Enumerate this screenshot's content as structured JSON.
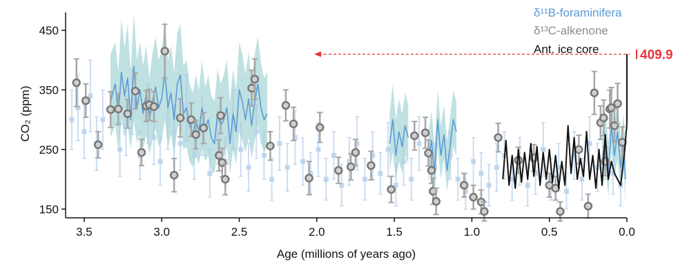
{
  "chart_data": {
    "type": "line",
    "xlabel": "Age (millions of years ago)",
    "ylabel": "CO₂ (ppm)",
    "xlim": [
      3.62,
      0.0
    ],
    "ylim": [
      140,
      480
    ],
    "x_ticks": [
      "3.5",
      "3.0",
      "2.5",
      "2.0",
      "1.5",
      "1.0",
      "0.5",
      "0.0"
    ],
    "x_tick_values": [
      3.5,
      3.0,
      2.5,
      2.0,
      1.5,
      1.0,
      0.5,
      0.0
    ],
    "y_ticks": [
      "150",
      "250",
      "350",
      "450"
    ],
    "y_tick_values": [
      150,
      250,
      350,
      450
    ],
    "grid": false,
    "legend_position": "top-right",
    "legend": [
      {
        "label": "δ¹¹B-foraminifera",
        "color": "#5b9bd5"
      },
      {
        "label": "δ¹³C-alkenone",
        "color": "#8c8c8c"
      },
      {
        "label": "Ant. ice core",
        "color": "#111111"
      }
    ],
    "annotation": {
      "label": "409.9",
      "value": 409.9,
      "color": "#e8333a"
    },
    "colors": {
      "boron": "#5b9bd5",
      "boron_band": "#7fc4c4",
      "alkenone": "#8c8c8c",
      "ice": "#111111",
      "accent": "#e8333a"
    },
    "series": [
      {
        "name": "δ¹¹B-foraminifera",
        "style": "line-with-band",
        "segments": [
          {
            "x": [
              3.33,
              3.3,
              3.28,
              3.26,
              3.24,
              3.22,
              3.2,
              3.18,
              3.16,
              3.14,
              3.12,
              3.1,
              3.08,
              3.06,
              3.04,
              3.02,
              3.0,
              2.98,
              2.96,
              2.94,
              2.92,
              2.9,
              2.88,
              2.86,
              2.84,
              2.82,
              2.8,
              2.78,
              2.76,
              2.74,
              2.72,
              2.7,
              2.68,
              2.66,
              2.64,
              2.62,
              2.6,
              2.58,
              2.56,
              2.54,
              2.52,
              2.5,
              2.48,
              2.46,
              2.44,
              2.42,
              2.4,
              2.38,
              2.36,
              2.34,
              2.32
            ],
            "y": [
              330,
              360,
              310,
              380,
              340,
              370,
              300,
              390,
              320,
              350,
              310,
              345,
              300,
              330,
              355,
              320,
              335,
              380,
              320,
              345,
              300,
              360,
              375,
              310,
              320,
              290,
              275,
              300,
              280,
              320,
              285,
              300,
              270,
              260,
              310,
              290,
              300,
              320,
              260,
              310,
              280,
              350,
              330,
              300,
              335,
              290,
              330,
              360,
              320,
              300,
              310
            ],
            "lower": [
              270,
              290,
              250,
              300,
              270,
              290,
              250,
              300,
              260,
              280,
              250,
              275,
              240,
              265,
              285,
              255,
              265,
              300,
              255,
              275,
              240,
              285,
              295,
              250,
              255,
              230,
              220,
              240,
              225,
              255,
              230,
              240,
              215,
              210,
              250,
              235,
              240,
              255,
              210,
              250,
              225,
              280,
              265,
              245,
              270,
              235,
              265,
              290,
              260,
              245,
              255
            ],
            "upper": [
              410,
              430,
              380,
              470,
              420,
              460,
              380,
              480,
              400,
              430,
              390,
              425,
              370,
              410,
              440,
              400,
              415,
              470,
              400,
              425,
              380,
              445,
              460,
              390,
              400,
              360,
              345,
              375,
              350,
              400,
              355,
              375,
              340,
              330,
              385,
              360,
              375,
              400,
              330,
              385,
              350,
              430,
              410,
              375,
              415,
              360,
              410,
              440,
              395,
              370,
              380
            ]
          },
          {
            "x": [
              1.53,
              1.51,
              1.49,
              1.47,
              1.45,
              1.43,
              1.41
            ],
            "y": [
              260,
              300,
              240,
              280,
              255,
              290,
              270
            ],
            "lower": [
              215,
              245,
              200,
              230,
              210,
              240,
              225
            ],
            "upper": [
              310,
              360,
              300,
              335,
              310,
              345,
              325
            ]
          },
          {
            "x": [
              1.28,
              1.26,
              1.24,
              1.22,
              1.2,
              1.18,
              1.16,
              1.14,
              1.12,
              1.1
            ],
            "y": [
              230,
              265,
              210,
              300,
              240,
              275,
              215,
              255,
              300,
              280
            ],
            "lower": [
              195,
              225,
              175,
              255,
              200,
              235,
              180,
              215,
              255,
              240
            ],
            "upper": [
              275,
              315,
              255,
              350,
              290,
              325,
              265,
              305,
              350,
              330
            ]
          },
          {
            "x": [
              0.16,
              0.14,
              0.12,
              0.1,
              0.08,
              0.06,
              0.04,
              0.02,
              0.01
            ],
            "y": [
              230,
              270,
              210,
              290,
              240,
              280,
              220,
              260,
              200
            ],
            "lower": [
              190,
              230,
              170,
              250,
              200,
              235,
              180,
              215,
              160
            ],
            "upper": [
              280,
              320,
              260,
              345,
              290,
              330,
              270,
              310,
              250
            ]
          }
        ]
      },
      {
        "name": "δ¹¹B-foraminifera",
        "style": "points",
        "x": [
          3.58,
          3.54,
          3.5,
          3.46,
          3.42,
          3.38,
          3.27,
          3.23,
          3.19,
          3.14,
          3.09,
          3.05,
          3.01,
          2.96,
          2.92,
          2.88,
          2.84,
          2.79,
          2.74,
          2.69,
          2.64,
          2.59,
          2.54,
          2.49,
          2.44,
          2.39,
          2.34,
          2.29,
          2.24,
          2.19,
          2.14,
          2.09,
          2.04,
          1.99,
          1.94,
          1.89,
          1.84,
          1.79,
          1.74,
          1.69,
          1.64,
          1.59,
          1.54,
          1.49,
          1.44,
          1.39,
          1.34,
          1.24,
          1.14,
          1.09,
          1.04,
          0.99,
          0.94,
          0.89,
          0.84,
          0.79,
          0.74,
          0.69,
          0.64,
          0.59,
          0.54,
          0.49,
          0.44,
          0.39,
          0.34,
          0.29,
          0.24,
          0.19,
          0.14,
          0.09,
          0.04
        ],
        "y": [
          300,
          320,
          280,
          340,
          260,
          300,
          250,
          290,
          330,
          240,
          310,
          270,
          230,
          300,
          280,
          260,
          320,
          240,
          290,
          210,
          270,
          230,
          300,
          250,
          220,
          280,
          240,
          200,
          260,
          220,
          270,
          230,
          210,
          250,
          200,
          240,
          190,
          230,
          260,
          200,
          240,
          210,
          250,
          190,
          230,
          200,
          260,
          220,
          240,
          200,
          180,
          230,
          210,
          190,
          220,
          240,
          200,
          230,
          190,
          210,
          250,
          200,
          220,
          180,
          240,
          200,
          260,
          220,
          240,
          210,
          190
        ],
        "err": [
          50,
          55,
          45,
          60,
          45,
          50,
          45,
          50,
          55,
          40,
          50,
          45,
          40,
          50,
          45,
          45,
          55,
          40,
          50,
          40,
          45,
          40,
          50,
          45,
          40,
          45,
          40,
          35,
          45,
          40,
          45,
          40,
          35,
          45,
          35,
          40,
          35,
          40,
          45,
          35,
          40,
          35,
          45,
          35,
          40,
          35,
          45,
          40,
          40,
          35,
          30,
          40,
          35,
          35,
          40,
          40,
          35,
          40,
          35,
          35,
          45,
          35,
          40,
          30,
          40,
          35,
          45,
          40,
          40,
          35,
          35
        ]
      },
      {
        "name": "δ¹³C-alkenone",
        "style": "points",
        "x": [
          3.55,
          3.49,
          3.41,
          3.33,
          3.28,
          3.22,
          3.17,
          3.13,
          3.1,
          3.08,
          3.05,
          2.98,
          2.92,
          2.88,
          2.81,
          2.78,
          2.73,
          2.63,
          2.62,
          2.61,
          2.59,
          2.42,
          2.4,
          2.3,
          2.2,
          2.15,
          2.05,
          1.98,
          1.86,
          1.78,
          1.75,
          1.65,
          1.52,
          1.37,
          1.3,
          1.28,
          1.26,
          1.25,
          1.23,
          1.05,
          0.99,
          0.94,
          0.92,
          0.83,
          0.7,
          0.6,
          0.5,
          0.46,
          0.43,
          0.31,
          0.25,
          0.21,
          0.17,
          0.15,
          0.14,
          0.11,
          0.1,
          0.08,
          0.06,
          0.03
        ],
        "y": [
          362,
          332,
          258,
          317,
          318,
          310,
          348,
          245,
          323,
          325,
          322,
          415,
          207,
          303,
          300,
          275,
          286,
          240,
          307,
          228,
          200,
          353,
          368,
          256,
          324,
          293,
          202,
          287,
          215,
          221,
          245,
          223,
          183,
          273,
          278,
          244,
          215,
          180,
          163,
          190,
          170,
          162,
          146,
          270,
          232,
          236,
          190,
          185,
          146,
          250,
          155,
          345,
          295,
          303,
          230,
          318,
          320,
          290,
          327,
          262
        ],
        "err": [
          40,
          28,
          22,
          30,
          26,
          24,
          30,
          22,
          26,
          26,
          25,
          45,
          28,
          32,
          28,
          24,
          26,
          26,
          30,
          24,
          26,
          30,
          34,
          24,
          26,
          28,
          28,
          25,
          22,
          22,
          22,
          24,
          22,
          24,
          26,
          22,
          22,
          22,
          22,
          20,
          20,
          20,
          16,
          24,
          22,
          22,
          20,
          20,
          16,
          24,
          20,
          36,
          28,
          30,
          24,
          32,
          34,
          28,
          34,
          26
        ]
      },
      {
        "name": "Ant. ice core",
        "style": "line",
        "x": [
          0.8,
          0.78,
          0.76,
          0.74,
          0.72,
          0.7,
          0.68,
          0.66,
          0.64,
          0.62,
          0.6,
          0.58,
          0.56,
          0.54,
          0.52,
          0.5,
          0.48,
          0.46,
          0.44,
          0.42,
          0.4,
          0.38,
          0.36,
          0.34,
          0.32,
          0.3,
          0.28,
          0.26,
          0.24,
          0.22,
          0.2,
          0.18,
          0.16,
          0.14,
          0.12,
          0.1,
          0.08,
          0.06,
          0.04,
          0.02,
          0.01,
          0.005,
          0.002,
          0.0,
          0.0
        ],
        "y": [
          200,
          265,
          190,
          240,
          185,
          250,
          195,
          245,
          200,
          260,
          205,
          255,
          190,
          245,
          200,
          250,
          195,
          240,
          185,
          230,
          190,
          290,
          210,
          270,
          200,
          235,
          205,
          280,
          200,
          240,
          185,
          250,
          190,
          275,
          200,
          230,
          210,
          200,
          190,
          235,
          260,
          280,
          285,
          300,
          409.9
        ]
      }
    ]
  }
}
